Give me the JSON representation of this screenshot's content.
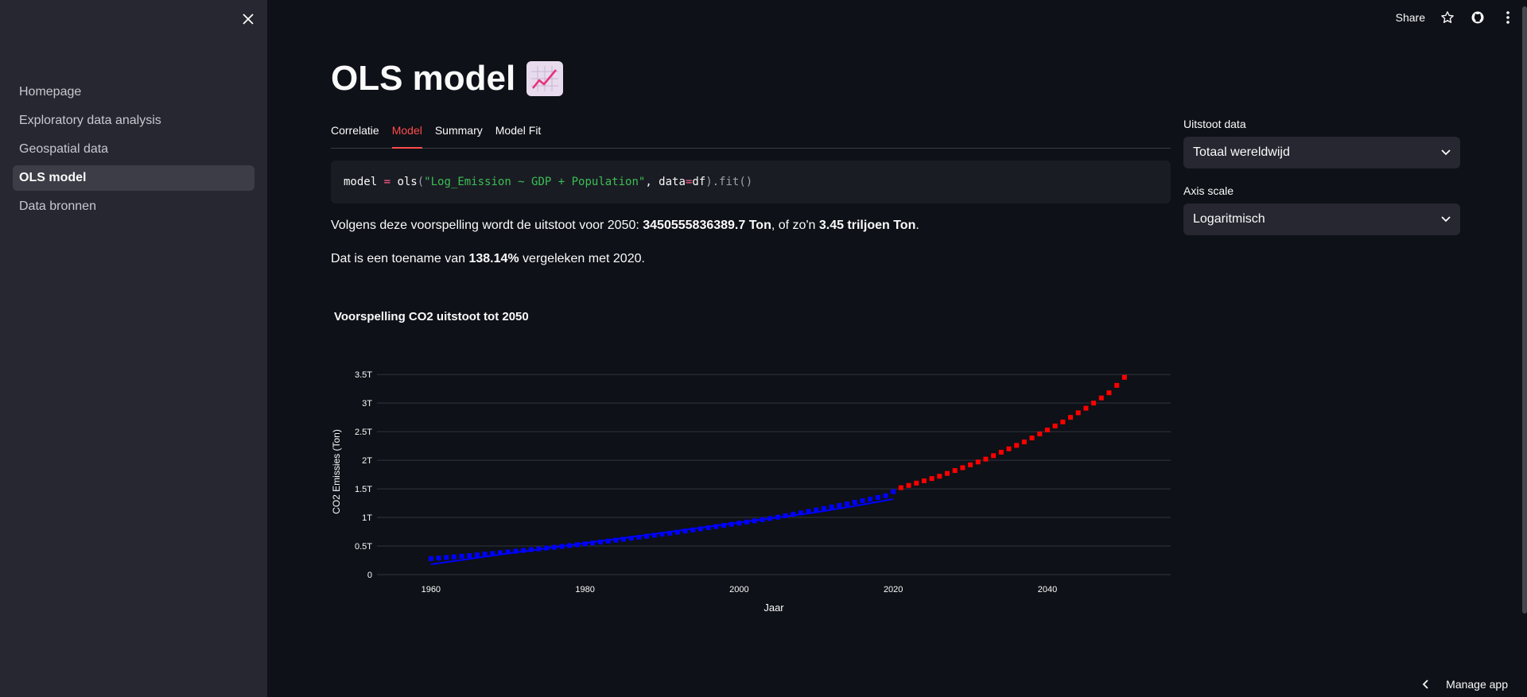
{
  "sidebar": {
    "items": [
      {
        "label": "Homepage",
        "active": false
      },
      {
        "label": "Exploratory data analysis",
        "active": false
      },
      {
        "label": "Geospatial data",
        "active": false
      },
      {
        "label": "OLS model",
        "active": true
      },
      {
        "label": "Data bronnen",
        "active": false
      }
    ]
  },
  "topbar": {
    "share_label": "Share"
  },
  "main": {
    "title": "OLS model",
    "title_icon": "chart-increasing-emoji",
    "tabs": [
      {
        "label": "Correlatie",
        "active": false
      },
      {
        "label": "Model",
        "active": true
      },
      {
        "label": "Summary",
        "active": false
      },
      {
        "label": "Model Fit",
        "active": false
      }
    ],
    "code": {
      "t1": "model ",
      "t2": "=",
      "t3": " ols",
      "t4": "(",
      "t5": "\"Log_Emission ~ GDP + Population\"",
      "t6": ", data",
      "t7": "=",
      "t8": "df",
      "t9": ").fit()"
    },
    "para1": {
      "prefix": "Volgens deze voorspelling wordt de uitstoot voor 2050: ",
      "value": "3450555836389.7 Ton",
      "middle": ", of zo'n ",
      "short_value": "3.45 triljoen Ton",
      "suffix": "."
    },
    "para2": {
      "prefix": "Dat is een toename van ",
      "value": "138.14%",
      "suffix": " vergeleken met 2020."
    }
  },
  "side_panel": {
    "emission_label": "Uitstoot data",
    "emission_value": "Totaal wereldwijd",
    "scale_label": "Axis scale",
    "scale_value": "Logaritmisch"
  },
  "footer": {
    "manage_label": "Manage app"
  },
  "colors": {
    "accent": "#ff4b4b",
    "historical": "#0000ff",
    "forecast": "#ff0000"
  },
  "chart_data": {
    "type": "scatter",
    "title": "Voorspelling CO2 uitstoot tot 2050",
    "xlabel": "Jaar",
    "ylabel": "CO2 Emissies (Ton)",
    "xlim": [
      1953,
      2056
    ],
    "ylim": [
      0,
      3600000000000.0
    ],
    "x_ticks": [
      1960,
      1980,
      2000,
      2020,
      2040
    ],
    "y_ticks": [
      0,
      500000000000.0,
      1000000000000.0,
      1500000000000.0,
      2000000000000.0,
      2500000000000.0,
      3000000000000.0,
      3500000000000.0
    ],
    "y_tick_labels": [
      "0",
      "0.5T",
      "1T",
      "1.5T",
      "2T",
      "2.5T",
      "3T",
      "3.5T"
    ],
    "grid": true,
    "series": [
      {
        "kind": "markers",
        "color": "#0000ff",
        "x": [
          1960,
          1961,
          1962,
          1963,
          1964,
          1965,
          1966,
          1967,
          1968,
          1969,
          1970,
          1971,
          1972,
          1973,
          1974,
          1975,
          1976,
          1977,
          1978,
          1979,
          1980,
          1981,
          1982,
          1983,
          1984,
          1985,
          1986,
          1987,
          1988,
          1989,
          1990,
          1991,
          1992,
          1993,
          1994,
          1995,
          1996,
          1997,
          1998,
          1999,
          2000,
          2001,
          2002,
          2003,
          2004,
          2005,
          2006,
          2007,
          2008,
          2009,
          2010,
          2011,
          2012,
          2013,
          2014,
          2015,
          2016,
          2017,
          2018,
          2019,
          2020
        ],
        "y": [
          280000000000.0,
          290000000000.0,
          300000000000.0,
          310000000000.0,
          322000000000.0,
          334000000000.0,
          346000000000.0,
          358000000000.0,
          370000000000.0,
          383000000000.0,
          396000000000.0,
          409000000000.0,
          422000000000.0,
          436000000000.0,
          450000000000.0,
          464000000000.0,
          478000000000.0,
          493000000000.0,
          508000000000.0,
          523000000000.0,
          538000000000.0,
          554000000000.0,
          570000000000.0,
          586000000000.0,
          602000000000.0,
          619000000000.0,
          636000000000.0,
          653000000000.0,
          670000000000.0,
          688000000000.0,
          706000000000.0,
          724000000000.0,
          743000000000.0,
          762000000000.0,
          781000000000.0,
          800000000000.0,
          820000000000.0,
          840000000000.0,
          860000000000.0,
          880000000000.0,
          900000000000.0,
          920000000000.0,
          940000000000.0,
          960000000000.0,
          982000000000.0,
          1005000000000.0,
          1030000000000.0,
          1055000000000.0,
          1080000000000.0,
          1105000000000.0,
          1130000000000.0,
          1157000000000.0,
          1184000000000.0,
          1211000000000.0,
          1238000000000.0,
          1265000000000.0,
          1293000000000.0,
          1321000000000.0,
          1350000000000.0,
          1380000000000.0,
          1450000000000.0
        ]
      },
      {
        "kind": "line",
        "color": "#0000ff",
        "x": [
          1960,
          1965,
          1970,
          1975,
          1980,
          1985,
          1990,
          1995,
          2000,
          2005,
          2010,
          2015,
          2020
        ],
        "y": [
          180000000000.0,
          275000000000.0,
          370000000000.0,
          460000000000.0,
          550000000000.0,
          640000000000.0,
          730000000000.0,
          820000000000.0,
          910000000000.0,
          1000000000000.0,
          1090000000000.0,
          1200000000000.0,
          1320000000000.0
        ]
      },
      {
        "kind": "markers",
        "color": "#ff0000",
        "x": [
          2021,
          2022,
          2023,
          2024,
          2025,
          2026,
          2027,
          2028,
          2029,
          2030,
          2031,
          2032,
          2033,
          2034,
          2035,
          2036,
          2037,
          2038,
          2039,
          2040,
          2041,
          2042,
          2043,
          2044,
          2045,
          2046,
          2047,
          2048,
          2049,
          2050
        ],
        "y": [
          1520000000000.0,
          1560000000000.0,
          1600000000000.0,
          1640000000000.0,
          1680000000000.0,
          1720000000000.0,
          1770000000000.0,
          1820000000000.0,
          1870000000000.0,
          1920000000000.0,
          1970000000000.0,
          2020000000000.0,
          2080000000000.0,
          2140000000000.0,
          2200000000000.0,
          2260000000000.0,
          2320000000000.0,
          2390000000000.0,
          2460000000000.0,
          2530000000000.0,
          2600000000000.0,
          2670000000000.0,
          2750000000000.0,
          2830000000000.0,
          2910000000000.0,
          3000000000000.0,
          3090000000000.0,
          3180000000000.0,
          3310000000000.0,
          3450000000000.0
        ]
      }
    ]
  }
}
